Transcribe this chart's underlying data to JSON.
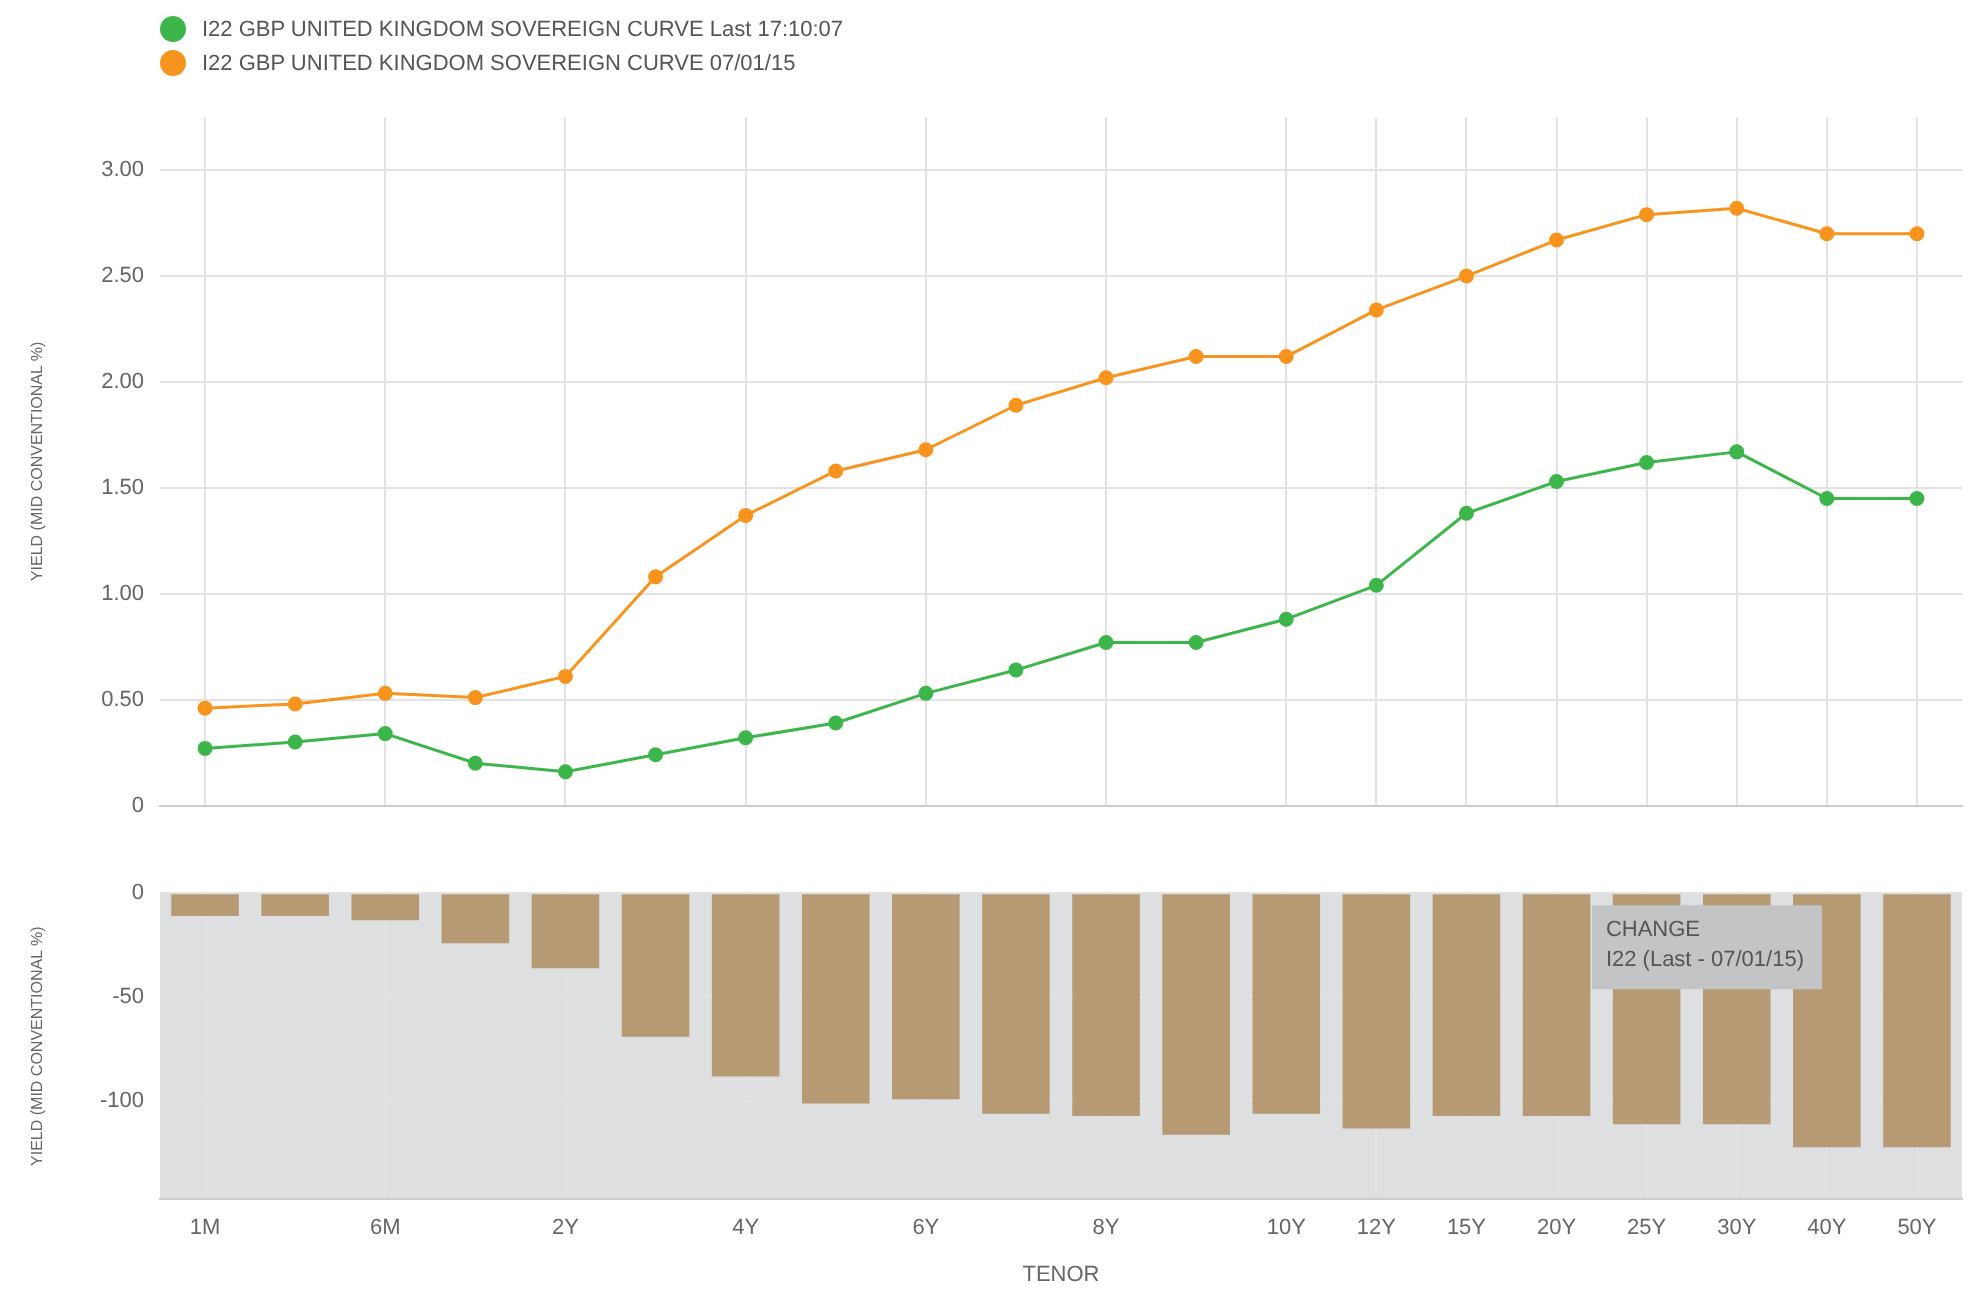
{
  "chart_data": [
    {
      "type": "line",
      "ylabel": "YIELD (MID CONVENTIONAL %)",
      "categories": [
        null,
        null,
        null,
        null,
        null,
        null,
        null,
        null,
        null,
        null,
        null,
        null,
        null,
        null,
        null,
        null,
        null,
        null,
        null,
        null
      ],
      "series": [
        {
          "name": "I22 GBP UNITED KINGDOM SOVEREIGN CURVE Last 17:10:07",
          "color": "#3cb54a",
          "values": [
            0.27,
            0.3,
            0.34,
            0.2,
            0.16,
            0.24,
            0.32,
            0.39,
            0.53,
            0.64,
            0.77,
            0.77,
            0.88,
            1.04,
            1.38,
            1.53,
            1.62,
            1.67,
            1.45,
            1.45
          ]
        },
        {
          "name": "I22 GBP UNITED KINGDOM SOVEREIGN CURVE 07/01/15",
          "color": "#f7941d",
          "values": [
            0.46,
            0.48,
            0.53,
            0.51,
            0.61,
            1.08,
            1.37,
            1.58,
            1.68,
            1.89,
            2.02,
            2.12,
            2.12,
            2.34,
            2.5,
            2.67,
            2.79,
            2.82,
            2.7,
            2.7
          ]
        }
      ],
      "ylim": [
        0,
        3.25
      ],
      "yticks": [
        {
          "value": 0,
          "label": "0"
        },
        {
          "value": 0.5,
          "label": "0.50"
        },
        {
          "value": 1,
          "label": "1.00"
        },
        {
          "value": 1.5,
          "label": "1.50"
        },
        {
          "value": 2,
          "label": "2.00"
        },
        {
          "value": 2.5,
          "label": "2.50"
        },
        {
          "value": 3,
          "label": "3.00"
        }
      ],
      "grid": true,
      "legend": "top left",
      "marker": "circle",
      "line_style": "solid"
    },
    {
      "type": "bar",
      "ylabel": "YIELD (MID CONVENTIONAL %)",
      "xlabel": "TENOR",
      "categories": [
        "1M",
        null,
        "6M",
        null,
        "2Y",
        null,
        "4Y",
        null,
        "6Y",
        null,
        "8Y",
        null,
        "10Y",
        "12Y",
        "15Y",
        "20Y",
        "25Y",
        "30Y",
        "40Y",
        "50Y"
      ],
      "values": [
        -11,
        -11,
        -13,
        -24,
        -36,
        -69,
        -88,
        -101,
        -99,
        -106,
        -107,
        -116,
        -106,
        -113,
        -107,
        -107,
        -111,
        -111,
        -122,
        -122
      ],
      "color": "#b59a74",
      "ylim": [
        -147,
        0
      ],
      "yticks": [
        -100,
        -50,
        0
      ],
      "grid": true,
      "legend": false,
      "annotations": [
        "CHANGE",
        "I22 (Last - 07/01/15)"
      ]
    }
  ]
}
